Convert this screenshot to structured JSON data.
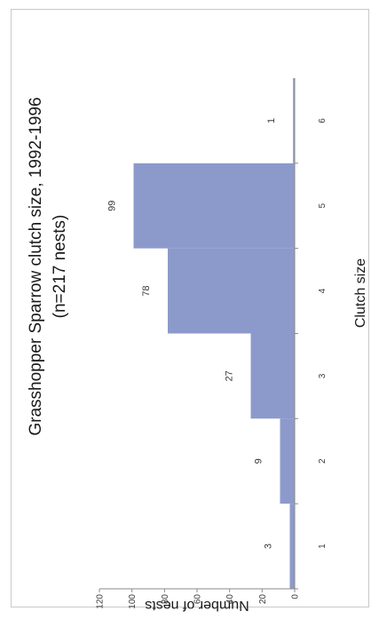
{
  "chart_data": {
    "type": "bar",
    "title": "Grasshopper Sparrow clutch size, 1992-1996",
    "subtitle": "(n=217 nests)",
    "xlabel": "Clutch size",
    "ylabel": "Number of nests",
    "categories": [
      "1",
      "2",
      "3",
      "4",
      "5",
      "6"
    ],
    "values": [
      3,
      9,
      27,
      78,
      99,
      1
    ],
    "data_labels": [
      "3",
      "9",
      "27",
      "78",
      "99",
      "1"
    ],
    "ylim": [
      0,
      120
    ],
    "yticks": [
      "0",
      "20",
      "40",
      "60",
      "80",
      "100",
      "120"
    ],
    "bar_gap": 0,
    "orientation": "rotated-90-clockwise",
    "grid": false,
    "legend": "none",
    "colors": {
      "bar": "#8c9acb",
      "axis": "#8a8a8a",
      "frame": "#c9c9c9"
    }
  }
}
